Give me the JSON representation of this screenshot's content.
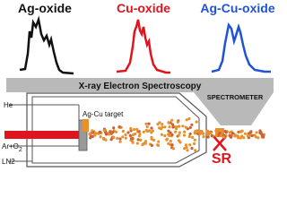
{
  "titles": {
    "ag_oxide": "Ag-oxide",
    "cu_oxide": "Cu-oxide",
    "ag_cu_oxide": "Ag-Cu-oxide"
  },
  "band": "X-ray Electron Spectroscopy",
  "spectrometer": "SPECTROMETER",
  "gases": {
    "he": "He",
    "ar_o": "Ar+O",
    "ar_o_sub": "2",
    "ln2": "LN2"
  },
  "target": "Ag-Cu target",
  "sr": "SR"
}
